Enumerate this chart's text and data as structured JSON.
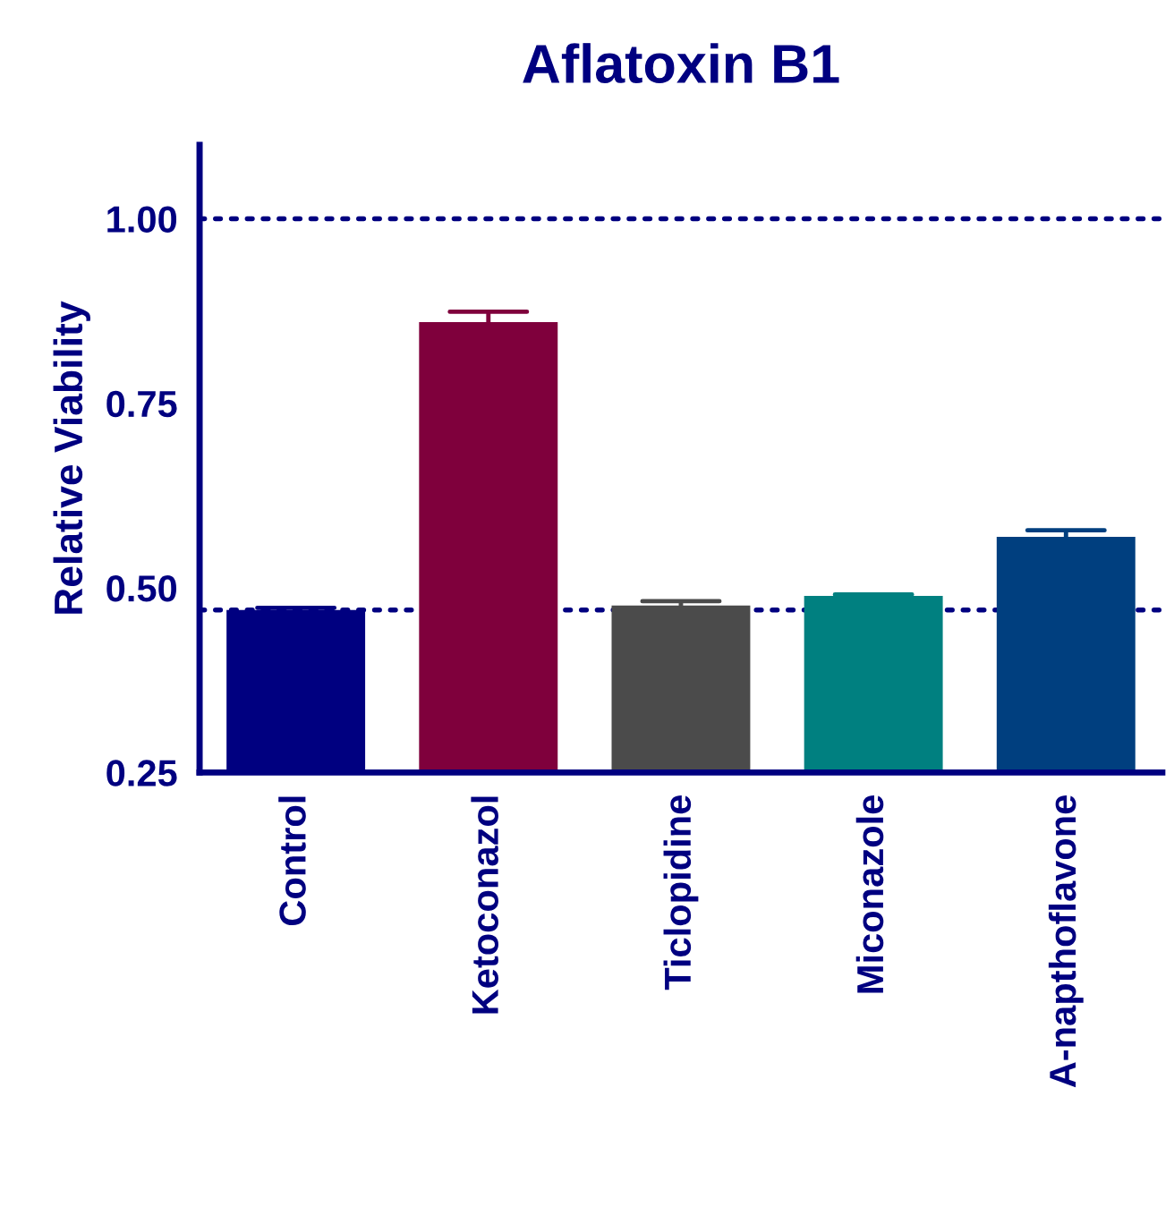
{
  "chart_data": {
    "type": "bar",
    "title": "Aflatoxin B1",
    "ylabel": "Relative Viability",
    "categories": [
      "Control",
      "Ketoconazol",
      "Ticlopidine",
      "Miconazole",
      "A-napthoflavone"
    ],
    "values": [
      0.47,
      0.86,
      0.476,
      0.489,
      0.569
    ],
    "colors": [
      "#000080",
      "#7f003c",
      "#4b4b4b",
      "#008080",
      "#003f7f"
    ],
    "errors": [
      [
        0.47,
        0.473
      ],
      [
        0.86,
        0.874
      ],
      [
        0.476,
        0.482
      ],
      [
        0.489,
        0.491
      ],
      [
        0.569,
        0.578
      ]
    ],
    "ylim": [
      0.25,
      1.1
    ],
    "yticks": [
      {
        "value": 0.25,
        "label": "0.25"
      },
      {
        "value": 0.5,
        "label": "0.50"
      },
      {
        "value": 0.75,
        "label": "0.75"
      },
      {
        "value": 1.0,
        "label": "1.00"
      }
    ],
    "ref_lines": [
      {
        "axis": "y",
        "value": 1.0,
        "color": "#000080",
        "line_style": "dotted"
      },
      {
        "axis": "y",
        "value": 0.47,
        "color": "#000080",
        "line_style": "dotted"
      }
    ],
    "grid": false,
    "legend": false
  }
}
